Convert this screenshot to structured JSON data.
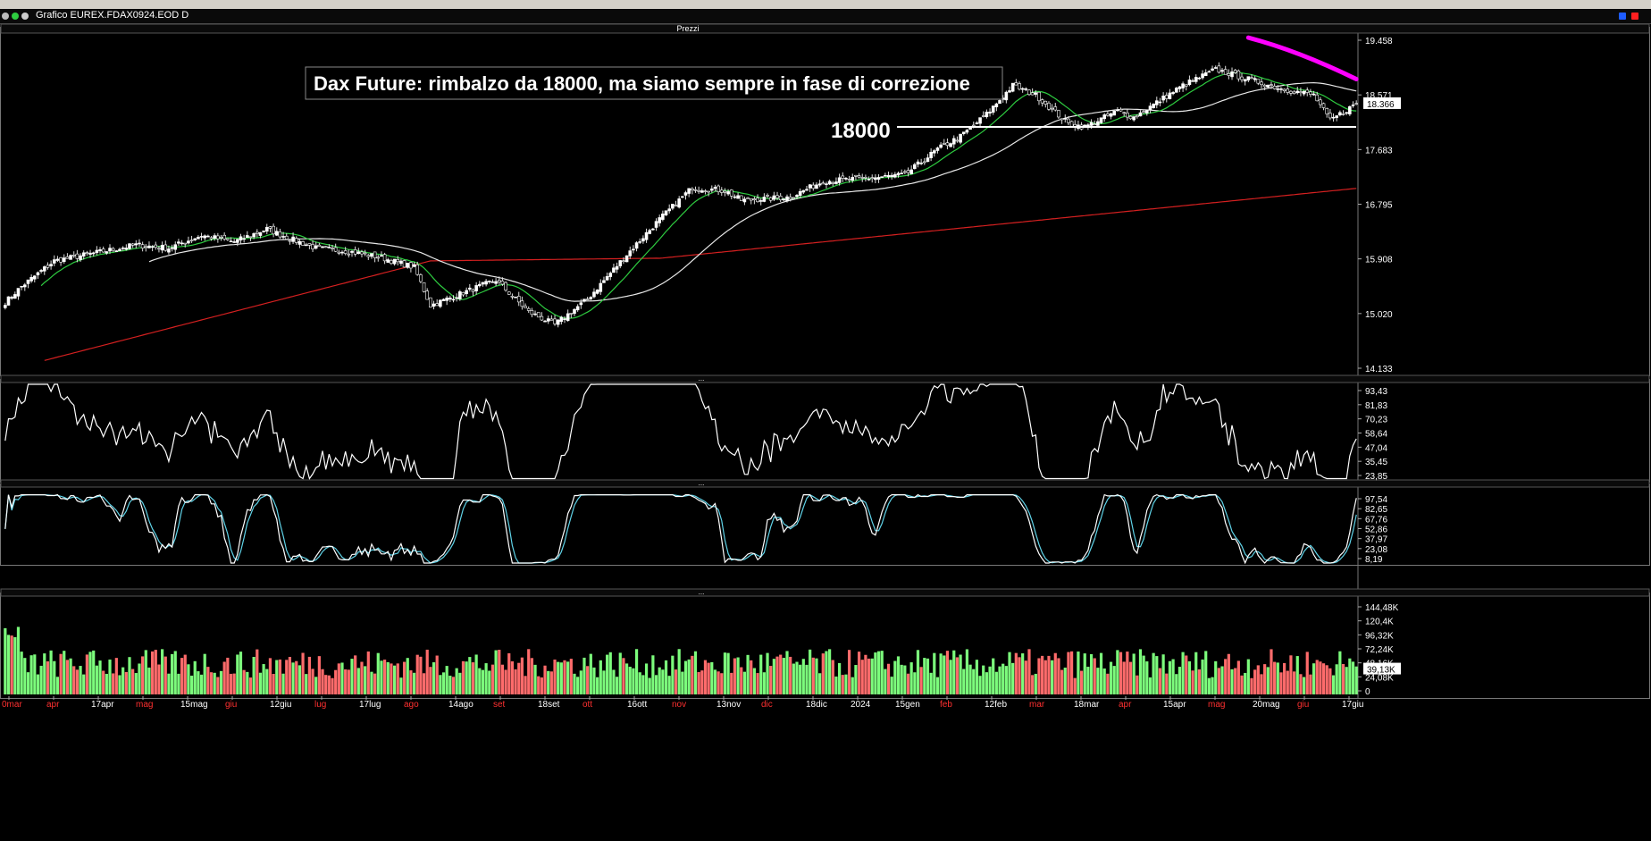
{
  "window": {
    "title": "Grafico EUREX.FDAX0924.EOD D",
    "panel_title": "Prezzi"
  },
  "colors": {
    "background": "#000000",
    "bull": "#7CFC7C",
    "bear": "#FF6B6B",
    "ma_fast": "#2ecc40",
    "ma_mid": "#e8e8e8",
    "ma_slow": "#d42020",
    "trendline": "#ff00ff",
    "osc1": "#ffffff",
    "stoch_k": "#ffffff",
    "stoch_d": "#5fd3e8"
  },
  "chart_data": {
    "type": "candlestick",
    "title": "Dax Future: rimbalzo da 18000, ma siamo sempre in fase di correzione",
    "annotation": {
      "label": "18000",
      "level": 18000
    },
    "last_price": "18.366",
    "price_axis": {
      "labels": [
        "19.458",
        "18.571",
        "17.683",
        "16.795",
        "15.908",
        "15.020",
        "14.133"
      ],
      "ylim": [
        14133,
        19458
      ]
    },
    "osc_axis": {
      "labels": [
        "93,43",
        "81,83",
        "70,23",
        "58,64",
        "47,04",
        "35,45",
        "23,85"
      ],
      "ylim": [
        23.85,
        93.43
      ]
    },
    "stoch_axis": {
      "labels": [
        "97,54",
        "82,65",
        "67,76",
        "52,86",
        "37,97",
        "23,08",
        "8,19"
      ],
      "ylim": [
        8.19,
        97.54
      ]
    },
    "volume_axis": {
      "labels": [
        "144,48K",
        "120,4K",
        "96,32K",
        "72,24K",
        "48,16K",
        "39,13K",
        "24,08K",
        "0"
      ],
      "ylim": [
        0,
        144480
      ],
      "last": "39,13K"
    },
    "x_labels": [
      {
        "text": "0mar",
        "red": true
      },
      {
        "text": "apr",
        "red": true
      },
      {
        "text": "17apr",
        "red": false
      },
      {
        "text": "mag",
        "red": true
      },
      {
        "text": "15mag",
        "red": false
      },
      {
        "text": "giu",
        "red": true
      },
      {
        "text": "12giu",
        "red": false
      },
      {
        "text": "lug",
        "red": true
      },
      {
        "text": "17lug",
        "red": false
      },
      {
        "text": "ago",
        "red": true
      },
      {
        "text": "14ago",
        "red": false
      },
      {
        "text": "set",
        "red": true
      },
      {
        "text": "18set",
        "red": false
      },
      {
        "text": "ott",
        "red": true
      },
      {
        "text": "16ott",
        "red": false
      },
      {
        "text": "nov",
        "red": true
      },
      {
        "text": "13nov",
        "red": false
      },
      {
        "text": "dic",
        "red": true
      },
      {
        "text": "18dic",
        "red": false
      },
      {
        "text": "2024",
        "red": false
      },
      {
        "text": "15gen",
        "red": false
      },
      {
        "text": "feb",
        "red": true
      },
      {
        "text": "12feb",
        "red": false
      },
      {
        "text": "mar",
        "red": true
      },
      {
        "text": "18mar",
        "red": false
      },
      {
        "text": "apr",
        "red": true
      },
      {
        "text": "15apr",
        "red": false
      },
      {
        "text": "mag",
        "red": true
      },
      {
        "text": "20mag",
        "red": false
      },
      {
        "text": "giu",
        "red": true
      },
      {
        "text": "17giu",
        "red": false
      }
    ],
    "close_keypoints": [
      [
        0,
        15250
      ],
      [
        5,
        15500
      ],
      [
        15,
        15900
      ],
      [
        30,
        16050
      ],
      [
        40,
        16150
      ],
      [
        50,
        16100
      ],
      [
        60,
        16300
      ],
      [
        70,
        16200
      ],
      [
        80,
        16400
      ],
      [
        87,
        16250
      ],
      [
        95,
        16100
      ],
      [
        105,
        16050
      ],
      [
        115,
        15950
      ],
      [
        125,
        15800
      ],
      [
        130,
        15200
      ],
      [
        150,
        15600
      ],
      [
        160,
        15100
      ],
      [
        168,
        14900
      ],
      [
        178,
        15300
      ],
      [
        190,
        16000
      ],
      [
        200,
        16550
      ],
      [
        210,
        17050
      ],
      [
        220,
        17000
      ],
      [
        225,
        16850
      ],
      [
        240,
        16900
      ],
      [
        250,
        17150
      ],
      [
        265,
        17200
      ],
      [
        275,
        17250
      ],
      [
        285,
        17650
      ],
      [
        292,
        17850
      ],
      [
        300,
        18200
      ],
      [
        308,
        18650
      ],
      [
        315,
        18500
      ],
      [
        325,
        18050
      ],
      [
        330,
        18000
      ],
      [
        340,
        18250
      ],
      [
        345,
        18150
      ],
      [
        360,
        18650
      ],
      [
        370,
        18900
      ],
      [
        380,
        18750
      ],
      [
        390,
        18600
      ],
      [
        400,
        18500
      ],
      [
        405,
        18100
      ],
      [
        413,
        18366
      ]
    ],
    "candle_count": 414,
    "ma_periods": [
      20,
      50,
      200
    ],
    "trendline": {
      "from": [
        380,
        19400
      ],
      "to": [
        413,
        18750
      ]
    }
  }
}
